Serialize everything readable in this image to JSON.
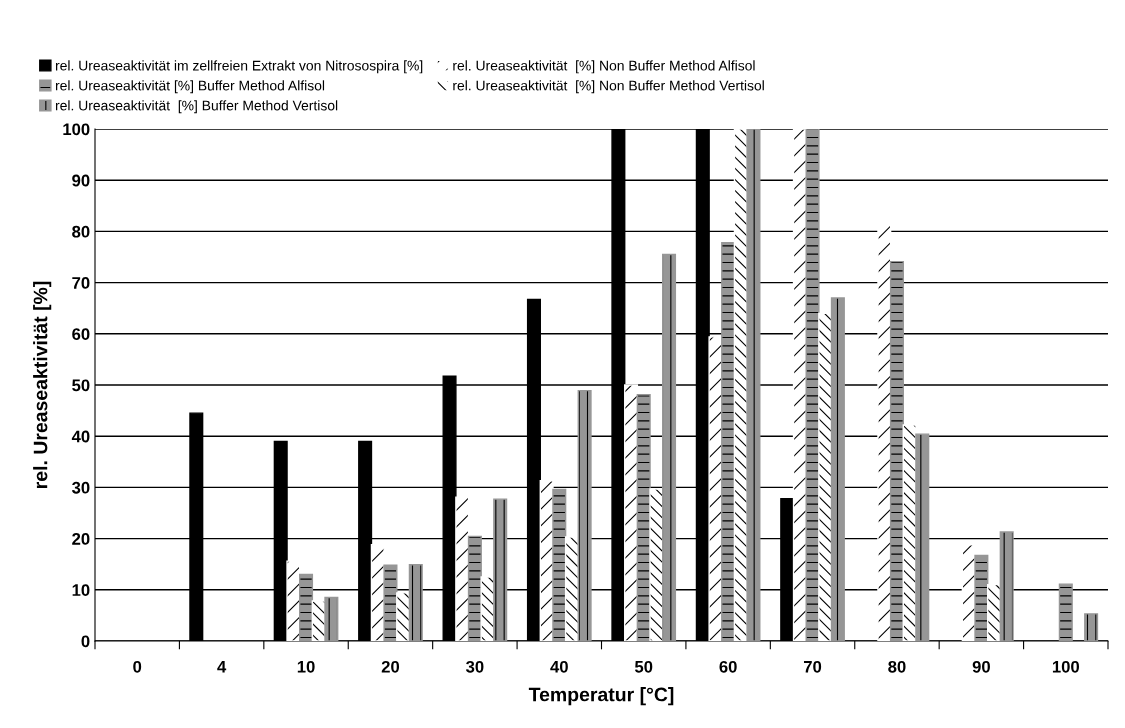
{
  "chart_data": {
    "type": "bar",
    "xlabel": "Temperatur [°C]",
    "ylabel": "rel. Ureaseaktivität [%]",
    "categories": [
      "0",
      "4",
      "10",
      "20",
      "30",
      "40",
      "50",
      "60",
      "70",
      "80",
      "90",
      "100"
    ],
    "series": [
      {
        "name": "rel. Ureaseaktivität im zellfreien Extrakt von Nitrosospira [%]",
        "color": "#000000",
        "values": [
          null,
          44.5,
          39,
          39,
          51.7,
          66.7,
          100,
          100,
          27.8,
          null,
          null,
          null
        ]
      },
      {
        "name": "rel. Ureaseaktivität  [%] Non Buffer Method Alfisol",
        "color": "#ffffff",
        "values": [
          null,
          null,
          15.6,
          18.8,
          28.1,
          31.3,
          50,
          59.4,
          100,
          81.3,
          18.8,
          null
        ]
      },
      {
        "name": "rel. Ureaseaktivität [%] Buffer Method Alfisol",
        "color": "#969696",
        "values": [
          null,
          null,
          13,
          14.8,
          20.4,
          29.6,
          48.1,
          77.8,
          100,
          74.1,
          16.7,
          11.1
        ]
      },
      {
        "name": "rel. Ureaseaktivität  [%] Non Buffer Method Vertisol",
        "color": "#ffffff",
        "values": [
          null,
          null,
          7.8,
          9.4,
          12.5,
          20.3,
          29.7,
          100,
          64,
          42.2,
          11,
          null
        ]
      },
      {
        "name": "rel. Ureaseaktivität  [%] Buffer Method Vertisol",
        "color": "#969696",
        "values": [
          null,
          null,
          8.5,
          14.9,
          27.7,
          48.9,
          75.5,
          100,
          67,
          40.4,
          21.3,
          5.3
        ]
      }
    ],
    "ylim": [
      0,
      100
    ],
    "yticks": [
      0,
      10,
      20,
      30,
      40,
      50,
      60,
      70,
      80,
      90,
      100
    ],
    "grid": "y",
    "legend": "top"
  }
}
